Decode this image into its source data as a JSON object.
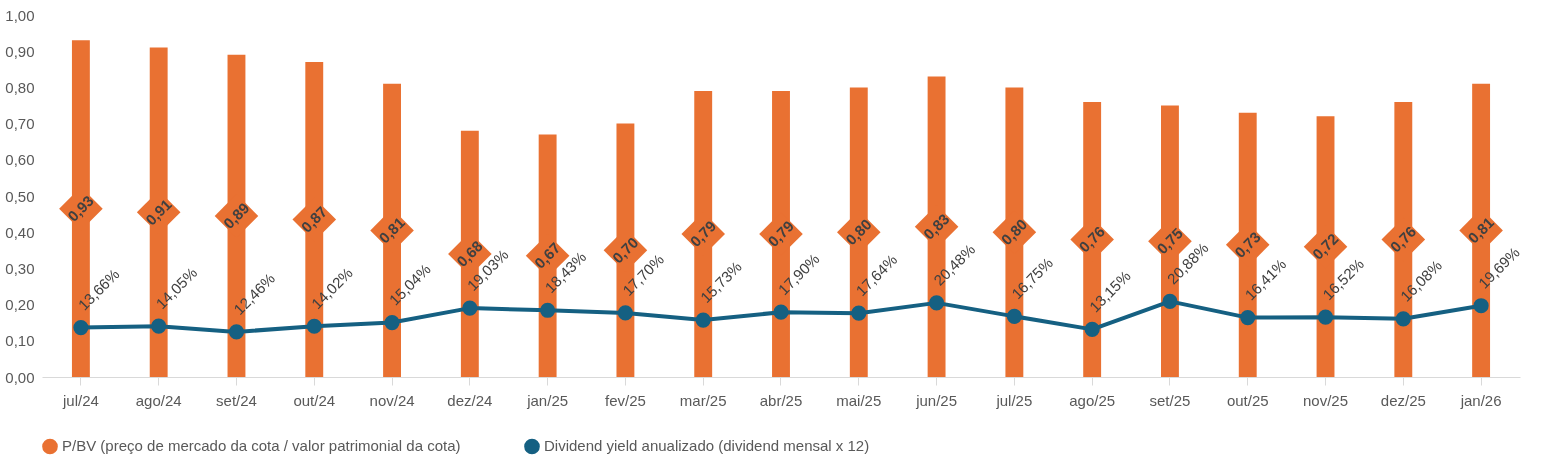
{
  "chart_data": {
    "type": "bar",
    "categories": [
      "jul/24",
      "ago/24",
      "set/24",
      "out/24",
      "nov/24",
      "dez/24",
      "jan/25",
      "fev/25",
      "mar/25",
      "abr/25",
      "mai/25",
      "jun/25",
      "jul/25",
      "ago/25",
      "set/25",
      "out/25",
      "nov/25",
      "dez/25",
      "jan/26"
    ],
    "series": [
      {
        "name": "P/BV (preço de mercado da cota / valor patrimonial da cota)",
        "color": "#e97132",
        "values": [
          0.93,
          0.91,
          0.89,
          0.87,
          0.81,
          0.68,
          0.67,
          0.7,
          0.79,
          0.79,
          0.8,
          0.83,
          0.8,
          0.76,
          0.75,
          0.73,
          0.72,
          0.76,
          0.81
        ],
        "value_labels": [
          "0,93",
          "0,91",
          "0,89",
          "0,87",
          "0,81",
          "0,68",
          "0,67",
          "0,70",
          "0,79",
          "0,79",
          "0,80",
          "0,83",
          "0,80",
          "0,76",
          "0,75",
          "0,73",
          "0,72",
          "0,76",
          "0,81"
        ]
      },
      {
        "name": "Dividend yield anualizado (dividend mensal x 12)",
        "type": "line",
        "color": "#156082",
        "values": [
          0.1366,
          0.1405,
          0.1246,
          0.1402,
          0.1504,
          0.1903,
          0.1843,
          0.177,
          0.1573,
          0.179,
          0.1764,
          0.2048,
          0.1675,
          0.1315,
          0.2088,
          0.1641,
          0.1652,
          0.1608,
          0.1969
        ],
        "value_labels": [
          "13,66%",
          "14,05%",
          "12,46%",
          "14,02%",
          "15,04%",
          "19,03%",
          "18,43%",
          "17,70%",
          "15,73%",
          "17,90%",
          "17,64%",
          "20,48%",
          "16,75%",
          "13,15%",
          "20,88%",
          "16,41%",
          "16,52%",
          "16,08%",
          "19,69%"
        ]
      }
    ],
    "ylim": [
      0,
      1
    ],
    "yticks": [
      {
        "value": 0,
        "label": "0,00"
      },
      {
        "value": 0.1,
        "label": "0,10"
      },
      {
        "value": 0.2,
        "label": "0,20"
      },
      {
        "value": 0.3,
        "label": "0,30"
      },
      {
        "value": 0.4,
        "label": "0,40"
      },
      {
        "value": 0.5,
        "label": "0,50"
      },
      {
        "value": 0.6,
        "label": "0,60"
      },
      {
        "value": 0.7,
        "label": "0,70"
      },
      {
        "value": 0.8,
        "label": "0,80"
      },
      {
        "value": 0.9,
        "label": "0,90"
      },
      {
        "value": 1,
        "label": "1,00"
      }
    ],
    "grid": false,
    "legend": "bottom",
    "marker": "circle",
    "line_style": "solid"
  }
}
